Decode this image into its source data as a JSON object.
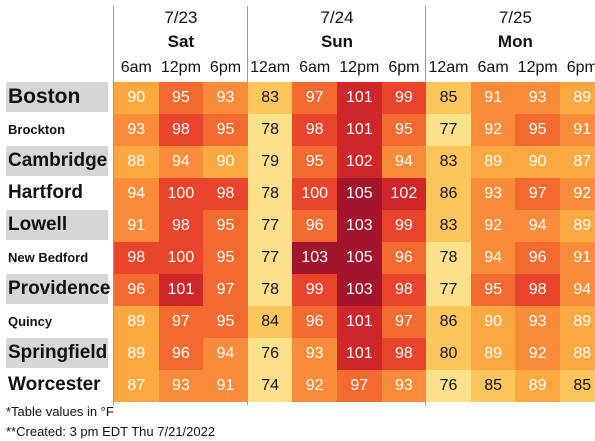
{
  "chart_data": {
    "type": "table",
    "days": [
      {
        "date": "7/23",
        "day": "Sat",
        "hours": [
          "6am",
          "12pm",
          "6pm"
        ]
      },
      {
        "date": "7/24",
        "day": "Sun",
        "hours": [
          "12am",
          "6am",
          "12pm",
          "6pm"
        ]
      },
      {
        "date": "7/25",
        "day": "Mon",
        "hours": [
          "12am",
          "6am",
          "12pm",
          "6pm"
        ]
      }
    ],
    "rows": [
      {
        "city": "Boston",
        "values": [
          90,
          95,
          93,
          83,
          97,
          101,
          99,
          85,
          91,
          93,
          89
        ]
      },
      {
        "city": "Brockton",
        "values": [
          93,
          98,
          95,
          78,
          98,
          101,
          95,
          77,
          92,
          95,
          91
        ]
      },
      {
        "city": "Cambridge",
        "values": [
          88,
          94,
          90,
          79,
          95,
          102,
          94,
          83,
          89,
          90,
          87
        ]
      },
      {
        "city": "Hartford",
        "values": [
          94,
          100,
          98,
          78,
          100,
          105,
          102,
          86,
          93,
          97,
          92
        ]
      },
      {
        "city": "Lowell",
        "values": [
          91,
          98,
          95,
          77,
          96,
          103,
          99,
          83,
          92,
          94,
          89
        ]
      },
      {
        "city": "New Bedford",
        "values": [
          98,
          100,
          95,
          77,
          103,
          105,
          96,
          78,
          94,
          96,
          91
        ]
      },
      {
        "city": "Providence",
        "values": [
          96,
          101,
          97,
          78,
          99,
          103,
          98,
          77,
          95,
          98,
          94
        ]
      },
      {
        "city": "Quincy",
        "values": [
          89,
          97,
          95,
          84,
          96,
          101,
          97,
          86,
          90,
          93,
          89
        ]
      },
      {
        "city": "Springfield",
        "values": [
          89,
          96,
          94,
          76,
          93,
          101,
          98,
          80,
          89,
          92,
          88
        ]
      },
      {
        "city": "Worcester",
        "values": [
          87,
          93,
          91,
          74,
          92,
          97,
          93,
          76,
          85,
          89,
          85
        ]
      }
    ],
    "footnotes": [
      "*Table values in °F",
      "**Created: 3 pm EDT Thu 7/21/2022"
    ],
    "color_scale": [
      {
        "max": 79,
        "color": "#fee08b",
        "text": "#111111"
      },
      {
        "max": 86,
        "color": "#fdc65c",
        "text": "#111111"
      },
      {
        "max": 90,
        "color": "#fca841",
        "text": "#ffffff"
      },
      {
        "max": 94,
        "color": "#f98c3a",
        "text": "#ffffff"
      },
      {
        "max": 97,
        "color": "#f26a30",
        "text": "#ffffff"
      },
      {
        "max": 100,
        "color": "#e8452c",
        "text": "#ffffff"
      },
      {
        "max": 102,
        "color": "#cf2629",
        "text": "#ffffff"
      },
      {
        "max": 999,
        "color": "#a3152d",
        "text": "#ffffff"
      }
    ]
  }
}
